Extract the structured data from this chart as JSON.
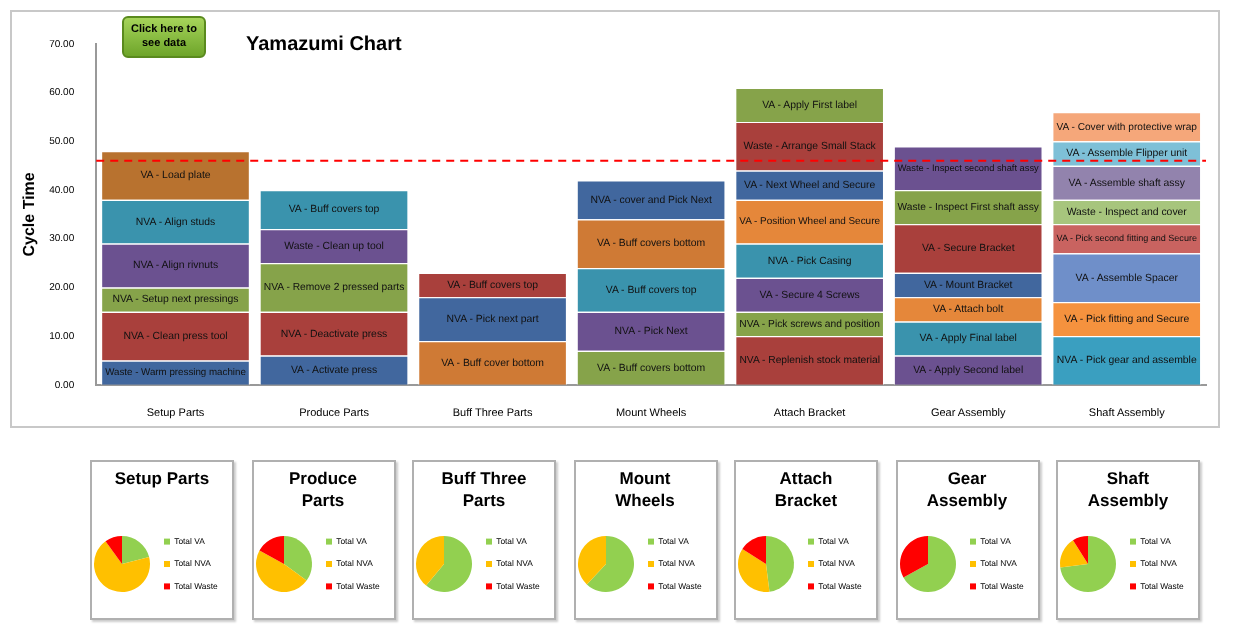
{
  "chart_data": [
    {
      "type": "bar",
      "title": "Yamazumi Chart",
      "ylabel": "Cycle Time",
      "annotations": [
        "Click here to see data"
      ],
      "categories": [
        "Setup Parts",
        "Produce Parts",
        "Buff Three Parts",
        "Mount Wheels",
        "Attach Bracket",
        "Gear Assembly",
        "Shaft Assembly"
      ],
      "stacked": true,
      "grid": false,
      "legend": false,
      "ylim": [
        0,
        70
      ],
      "yticks": [
        {
          "value": 0,
          "label": "0.00"
        },
        {
          "value": 10,
          "label": "10.00"
        },
        {
          "value": 20,
          "label": "20.00"
        },
        {
          "value": 30,
          "label": "30.00"
        },
        {
          "value": 40,
          "label": "40.00"
        },
        {
          "value": 50,
          "label": "50.00"
        },
        {
          "value": 60,
          "label": "60.00"
        },
        {
          "value": 70,
          "label": "70.00"
        }
      ],
      "ref_lines": [
        {
          "axis": "y",
          "value": 46,
          "color": "#ff0000",
          "line_style": "dashed"
        }
      ],
      "series": [
        {
          "values": [
            5,
            6,
            9,
            7,
            10,
            6,
            10
          ],
          "colors": [
            "#41679e",
            "#41679e",
            "#cf7a35",
            "#86a34a",
            "#a9403c",
            "#6b5190",
            "#3a9fc0"
          ],
          "value_labels": [
            "Waste - Warm pressing machine",
            "VA - Activate press",
            "VA - Buff cover bottom",
            "VA - Buff covers bottom",
            "NVA - Replenish stock material",
            "VA - Apply Second label",
            "NVA - Pick gear and assemble"
          ]
        },
        {
          "values": [
            10,
            9,
            9,
            8,
            5,
            7,
            7
          ],
          "colors": [
            "#a9403c",
            "#a9403c",
            "#41679e",
            "#6b5190",
            "#86a34a",
            "#3a93ad",
            "#f5923e"
          ],
          "value_labels": [
            "NVA - Clean press tool",
            "NVA - Deactivate press",
            "NVA - Pick next part",
            "NVA - Pick Next",
            "NVA - Pick screws and position",
            "VA - Apply Final label",
            "VA - Pick fitting and Secure"
          ]
        },
        {
          "values": [
            5,
            10,
            5,
            9,
            7,
            5,
            10
          ],
          "colors": [
            "#86a34a",
            "#86a34a",
            "#a9403c",
            "#3a93ad",
            "#6b5190",
            "#e5873a",
            "#6f8fc9"
          ],
          "value_labels": [
            "NVA - Setup next pressings",
            "NVA - Remove 2 pressed parts",
            "VA - Buff covers top",
            "VA - Buff covers top",
            "VA - Secure 4 Screws",
            "VA - Attach bolt",
            "VA - Assemble Spacer"
          ]
        },
        {
          "values": [
            9,
            7,
            null,
            10,
            7,
            5,
            6
          ],
          "colors": [
            "#6b5190",
            "#6b5190",
            null,
            "#cf7a35",
            "#3a93ad",
            "#41679e",
            "#c96360"
          ],
          "value_labels": [
            "NVA - Align rivnuts",
            "Waste - Clean up tool",
            null,
            "VA - Buff covers bottom",
            "NVA - Pick Casing",
            "VA - Mount Bracket",
            "VA - Pick second fitting and Secure"
          ]
        },
        {
          "values": [
            9,
            8,
            null,
            8,
            9,
            10,
            5
          ],
          "colors": [
            "#3a93ad",
            "#3a93ad",
            null,
            "#41679e",
            "#e5873a",
            "#a9403c",
            "#a7c57d"
          ],
          "value_labels": [
            "NVA - Align studs",
            "VA - Buff covers top",
            null,
            "NVA - cover and Pick Next",
            "VA - Position Wheel and Secure",
            "VA - Secure Bracket",
            "Waste - Inspect and cover"
          ]
        },
        {
          "values": [
            10,
            null,
            null,
            null,
            6,
            7,
            7
          ],
          "colors": [
            "#b8722f",
            null,
            null,
            null,
            "#41679e",
            "#86a34a",
            "#9283ad"
          ],
          "value_labels": [
            "VA - Load plate",
            null,
            null,
            null,
            "VA - Next Wheel and Secure",
            "Waste - Inspect First shaft assy",
            "VA - Assemble shaft assy"
          ]
        },
        {
          "values": [
            null,
            null,
            null,
            null,
            10,
            9,
            5
          ],
          "colors": [
            null,
            null,
            null,
            null,
            "#a9403c",
            "#6b5190",
            "#7ec0d7"
          ],
          "value_labels": [
            null,
            null,
            null,
            null,
            "Waste - Arrange Small Stack",
            "Waste - Inspect second shaft assy",
            "VA - Assemble Flipper unit"
          ]
        },
        {
          "values": [
            null,
            null,
            null,
            null,
            7,
            null,
            6
          ],
          "colors": [
            null,
            null,
            null,
            null,
            "#86a34a",
            null,
            "#f5a77a"
          ],
          "value_labels": [
            null,
            null,
            null,
            null,
            "VA - Apply First label",
            null,
            "VA - Cover with protective wrap"
          ]
        }
      ]
    },
    {
      "type": "pie",
      "title": "Setup Parts",
      "legend": "right",
      "categories": [
        "Total VA",
        "Total NVA",
        "Total Waste"
      ],
      "values": [
        21,
        69,
        10
      ],
      "colors": [
        "#92d050",
        "#ffc000",
        "#ff0000"
      ]
    },
    {
      "type": "pie",
      "title": "Produce Parts",
      "legend": "right",
      "categories": [
        "Total VA",
        "Total NVA",
        "Total Waste"
      ],
      "values": [
        35,
        48,
        17
      ],
      "colors": [
        "#92d050",
        "#ffc000",
        "#ff0000"
      ]
    },
    {
      "type": "pie",
      "title": "Buff Three Parts",
      "legend": "right",
      "categories": [
        "Total VA",
        "Total NVA",
        "Total Waste"
      ],
      "values": [
        61,
        39,
        0
      ],
      "colors": [
        "#92d050",
        "#ffc000",
        "#ff0000"
      ]
    },
    {
      "type": "pie",
      "title": "Mount Wheels",
      "legend": "right",
      "categories": [
        "Total VA",
        "Total NVA",
        "Total Waste"
      ],
      "values": [
        62,
        38,
        0
      ],
      "colors": [
        "#92d050",
        "#ffc000",
        "#ff0000"
      ]
    },
    {
      "type": "pie",
      "title": "Attach Bracket",
      "legend": "right",
      "categories": [
        "Total VA",
        "Total NVA",
        "Total Waste"
      ],
      "values": [
        48,
        36,
        16
      ],
      "colors": [
        "#92d050",
        "#ffc000",
        "#ff0000"
      ]
    },
    {
      "type": "pie",
      "title": "Gear Assembly",
      "legend": "right",
      "categories": [
        "Total VA",
        "Total NVA",
        "Total Waste"
      ],
      "values": [
        67,
        0,
        33
      ],
      "colors": [
        "#92d050",
        "#ffc000",
        "#ff0000"
      ]
    },
    {
      "type": "pie",
      "title": "Shaft Assembly",
      "legend": "right",
      "categories": [
        "Total VA",
        "Total NVA",
        "Total Waste"
      ],
      "values": [
        73,
        18,
        9
      ],
      "colors": [
        "#92d050",
        "#ffc000",
        "#ff0000"
      ]
    }
  ]
}
